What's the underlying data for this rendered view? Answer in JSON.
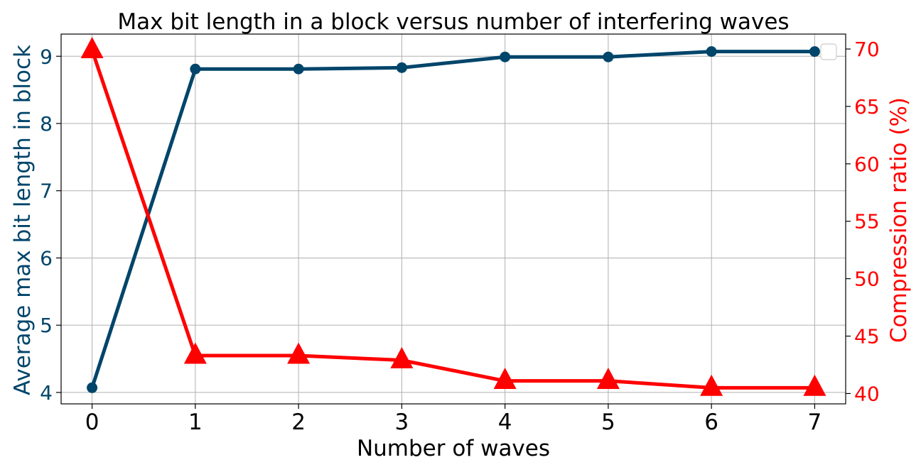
{
  "chart_data": {
    "type": "line",
    "title": "Max bit length in a block versus number of interfering waves",
    "xlabel": "Number of waves",
    "ylabel_left": "Average max bit length in block",
    "ylabel_right": "Compression ratio (%)",
    "x": [
      0,
      1,
      2,
      3,
      4,
      5,
      6,
      7
    ],
    "xlim": [
      -0.3,
      7.3
    ],
    "ylim_left": [
      3.83,
      9.33
    ],
    "ylim_right": [
      39.1,
      71.3
    ],
    "yticks_left": [
      4,
      5,
      6,
      7,
      8,
      9
    ],
    "yticks_right": [
      40,
      45,
      50,
      55,
      60,
      65,
      70
    ],
    "grid": true,
    "legend": "top-right",
    "series": [
      {
        "axis": "left",
        "marker": "circle",
        "color": "#00456a",
        "values": [
          4.07,
          8.81,
          8.81,
          8.83,
          8.99,
          8.99,
          9.07,
          9.07
        ]
      },
      {
        "axis": "right",
        "marker": "triangle",
        "color": "#ff0000",
        "values": [
          69.9,
          43.3,
          43.3,
          42.9,
          41.1,
          41.1,
          40.5,
          40.5
        ]
      }
    ]
  }
}
